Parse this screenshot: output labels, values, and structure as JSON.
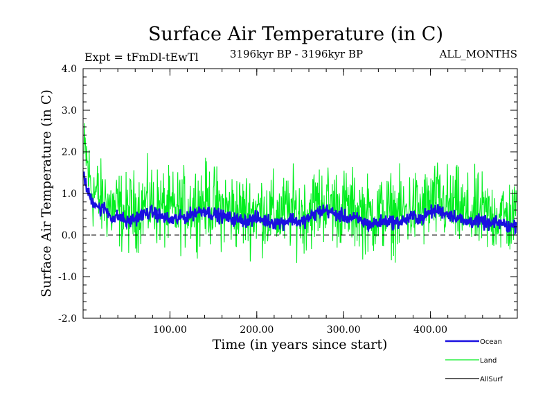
{
  "chart_data": {
    "type": "line",
    "title": "Surface Air Temperature (in C)",
    "subtitle_left": "Expt = tFmDl-tEwTl",
    "subtitle_center": "3196kyr BP - 3196kyr BP",
    "subtitle_right": "ALL_MONTHS",
    "xlabel": "Time (in years since start)",
    "ylabel": "Surface Air Temperature (in C)",
    "xlim": [
      0,
      500
    ],
    "ylim": [
      -2.0,
      4.0
    ],
    "x_ticks": [
      100,
      200,
      300,
      400
    ],
    "x_tick_labels": [
      "100.00",
      "200.00",
      "300.00",
      "400.00"
    ],
    "y_ticks": [
      -2.0,
      -1.0,
      0.0,
      1.0,
      2.0,
      3.0,
      4.0
    ],
    "y_tick_labels": [
      "-2.0",
      "-1.0",
      "0.0",
      "1.0",
      "2.0",
      "3.0",
      "4.0"
    ],
    "reference_line": 0.0,
    "series": [
      {
        "name": "Ocean",
        "color": "#1a10e0",
        "x": [
          0,
          3,
          6,
          10,
          15,
          20,
          25,
          30,
          35,
          40,
          45,
          50,
          55,
          60,
          70,
          80,
          90,
          100,
          110,
          120,
          130,
          140,
          150,
          160,
          170,
          180,
          190,
          200,
          210,
          220,
          230,
          240,
          250,
          260,
          270,
          280,
          290,
          300,
          310,
          320,
          330,
          340,
          350,
          360,
          370,
          380,
          390,
          400,
          410,
          420,
          430,
          440,
          450,
          460,
          470,
          480,
          490,
          500
        ],
        "values": [
          1.7,
          1.2,
          1.0,
          0.85,
          0.75,
          0.6,
          0.65,
          0.5,
          0.4,
          0.45,
          0.4,
          0.3,
          0.35,
          0.4,
          0.5,
          0.55,
          0.45,
          0.35,
          0.4,
          0.45,
          0.55,
          0.6,
          0.5,
          0.45,
          0.4,
          0.35,
          0.35,
          0.4,
          0.35,
          0.3,
          0.3,
          0.4,
          0.3,
          0.4,
          0.55,
          0.6,
          0.5,
          0.45,
          0.4,
          0.35,
          0.25,
          0.3,
          0.35,
          0.3,
          0.35,
          0.45,
          0.4,
          0.55,
          0.6,
          0.5,
          0.45,
          0.3,
          0.35,
          0.3,
          0.25,
          0.3,
          0.2,
          0.25
        ]
      },
      {
        "name": "Land",
        "color": "#00ee1e",
        "x": [
          0,
          3,
          6,
          10,
          15,
          20,
          25,
          30,
          35,
          40,
          45,
          50,
          55,
          60,
          70,
          80,
          90,
          100,
          110,
          120,
          130,
          140,
          150,
          160,
          170,
          180,
          190,
          200,
          210,
          220,
          230,
          240,
          250,
          260,
          270,
          280,
          290,
          300,
          310,
          320,
          330,
          340,
          350,
          360,
          370,
          380,
          390,
          400,
          410,
          420,
          430,
          440,
          450,
          460,
          470,
          480,
          490,
          500
        ],
        "values": [
          1.8,
          2.0,
          1.5,
          1.1,
          1.0,
          0.8,
          0.85,
          0.7,
          0.6,
          0.65,
          0.55,
          0.5,
          0.55,
          0.6,
          0.7,
          0.75,
          0.65,
          0.55,
          0.6,
          0.65,
          0.75,
          0.8,
          0.7,
          0.65,
          0.6,
          0.55,
          0.55,
          0.6,
          0.55,
          0.5,
          0.5,
          0.6,
          0.5,
          0.6,
          0.75,
          0.8,
          0.7,
          0.65,
          0.6,
          0.55,
          0.45,
          0.5,
          0.55,
          0.5,
          0.55,
          0.65,
          0.6,
          0.75,
          0.8,
          0.7,
          0.65,
          0.5,
          0.55,
          0.5,
          0.45,
          0.5,
          0.4,
          0.45
        ]
      },
      {
        "name": "AllSurf",
        "color": "#000000",
        "x": [],
        "values": []
      }
    ],
    "legend_position": "bottom-right"
  }
}
